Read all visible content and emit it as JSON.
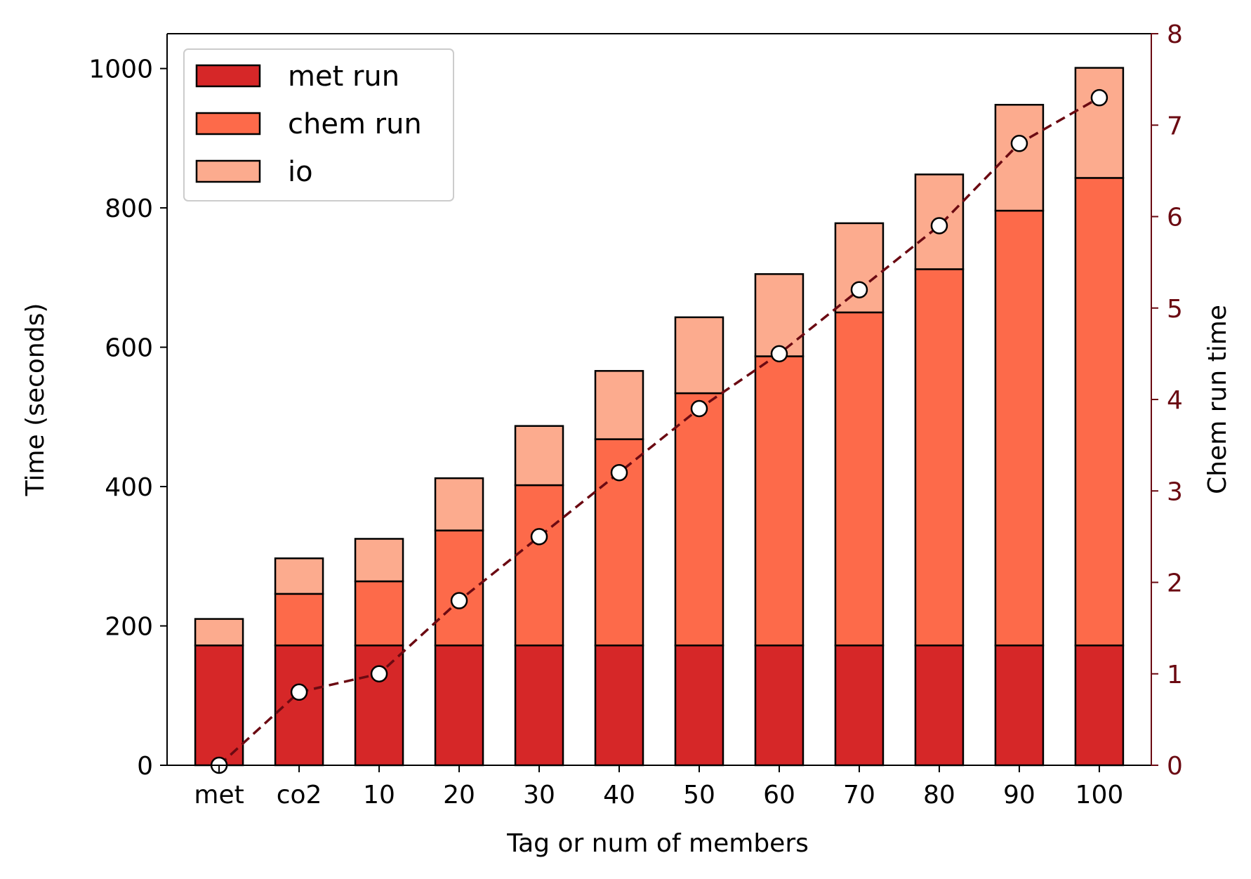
{
  "chart_data": {
    "type": "bar",
    "stacked": true,
    "categories": [
      "met",
      "co2",
      "10",
      "20",
      "30",
      "40",
      "50",
      "60",
      "70",
      "80",
      "90",
      "100"
    ],
    "series": [
      {
        "name": "met run",
        "color": "#d62728",
        "values": [
          172,
          172,
          172,
          172,
          172,
          172,
          172,
          172,
          172,
          172,
          172,
          172
        ]
      },
      {
        "name": "chem run",
        "color": "#fd6a4a",
        "values": [
          0,
          74,
          92,
          165,
          230,
          296,
          362,
          415,
          478,
          540,
          624,
          671
        ]
      },
      {
        "name": "io",
        "color": "#fcab8e",
        "values": [
          38,
          51,
          61,
          75,
          85,
          98,
          109,
          118,
          128,
          136,
          152,
          158
        ]
      }
    ],
    "line_series": {
      "axis": "right",
      "color": "#6b0a12",
      "style": "dashed",
      "marker": "circle",
      "values": [
        0.0,
        0.8,
        1.0,
        1.8,
        2.5,
        3.2,
        3.9,
        4.5,
        5.2,
        5.9,
        6.8,
        7.3
      ]
    },
    "xlabel": "Tag or num of members",
    "ylabel": "Time (seconds)",
    "y2label": "Chem run time",
    "ylim": [
      0,
      1050
    ],
    "y2lim": [
      0,
      8
    ],
    "yticks": [
      0,
      200,
      400,
      600,
      800,
      1000
    ],
    "y2ticks": [
      0,
      1,
      2,
      3,
      4,
      5,
      6,
      7,
      8
    ],
    "grid": false,
    "legend": "top-left"
  }
}
